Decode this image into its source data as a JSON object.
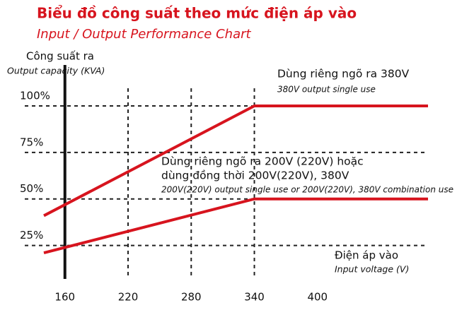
{
  "chart_data": {
    "type": "line",
    "title": "Biểu đồ công suất theo mức điện áp vào",
    "subtitle": "Input / Output Performance Chart",
    "y_label": "Công suất ra",
    "y_label_en": "Output capacity (KVA)",
    "x_label": "Điện áp vào",
    "x_label_en": "Input voltage (V)",
    "x": [
      140,
      340,
      505
    ],
    "series": [
      {
        "name": "Dùng riêng ngõ ra 380V",
        "name_en": "380V output single use",
        "color": "#d7141e",
        "values": [
          41,
          100,
          100
        ]
      },
      {
        "name": "Dùng riêng ngõ ra 200V (220V) hoặc dùng đồng thời 200V(220V), 380V",
        "name_lines": [
          "Dùng riêng ngõ ra 200V (220V) hoặc",
          "dùng đồng thời 200V(220V), 380V"
        ],
        "name_en": "200V(220V) output single use or 200V(220V), 380V combination use",
        "color": "#d7141e",
        "values": [
          21,
          50,
          50
        ]
      }
    ],
    "xlim": [
      140,
      505
    ],
    "ylim": [
      7,
      122
    ],
    "xticks": [
      160,
      220,
      280,
      340,
      400
    ],
    "yticks": [
      {
        "value": 25,
        "label": "25%"
      },
      {
        "value": 50,
        "label": "50%"
      },
      {
        "value": 75,
        "label": "75%"
      },
      {
        "value": 100,
        "label": "100%"
      }
    ],
    "x_grid_lines": [
      220,
      280,
      340
    ],
    "grid": true
  }
}
